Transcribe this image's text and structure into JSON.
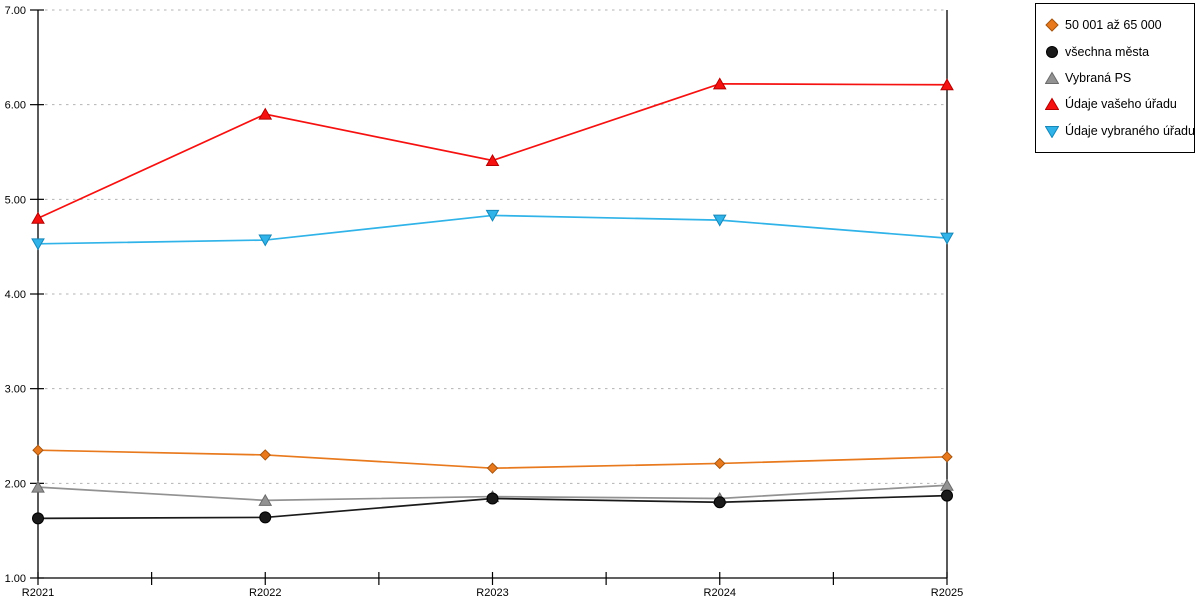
{
  "chart_data": {
    "type": "line",
    "title": "",
    "xlabel": "",
    "ylabel": "",
    "categories": [
      "R2021",
      "R2022",
      "R2023",
      "R2024",
      "R2025"
    ],
    "series": [
      {
        "name": "50 001 až 65 000",
        "marker": "diamond",
        "color": "#E8791D",
        "edge": "#A4540F",
        "values": [
          2.35,
          2.3,
          2.16,
          2.21,
          2.28
        ]
      },
      {
        "name": "všechna města",
        "marker": "circle",
        "color": "#1A1A1A",
        "edge": "#000000",
        "values": [
          1.63,
          1.64,
          1.84,
          1.8,
          1.87
        ]
      },
      {
        "name": "Vybraná PS",
        "marker": "triangle-up",
        "color": "#929292",
        "edge": "#6B6B6B",
        "values": [
          1.96,
          1.82,
          1.86,
          1.84,
          1.98
        ]
      },
      {
        "name": "Údaje vašeho úřadu",
        "marker": "triangle-up",
        "color": "#F61111",
        "edge": "#B40000",
        "values": [
          4.8,
          5.9,
          5.41,
          6.22,
          6.21
        ]
      },
      {
        "name": "Údaje vybraného úřadu",
        "marker": "triangle-down",
        "color": "#2FB3E8",
        "edge": "#1787B8",
        "values": [
          4.53,
          4.57,
          4.83,
          4.78,
          4.59
        ]
      }
    ],
    "ylim": [
      1,
      7
    ],
    "ytick_step": 1,
    "ytick_labels": [
      "1.00",
      "2.00",
      "3.00",
      "4.00",
      "5.00",
      "6.00",
      "7.00"
    ],
    "grid": "horizontal-dotted",
    "gridline_color": "#B3B3B3",
    "axis_color": "#000000",
    "legend_position": "top-right",
    "legend_border_color": "#000000"
  }
}
